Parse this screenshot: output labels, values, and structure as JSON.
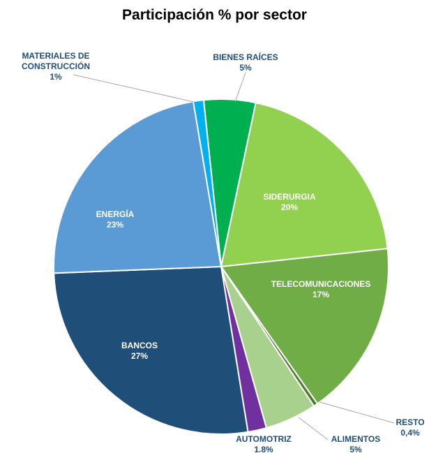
{
  "chart_data": {
    "type": "pie",
    "title": "Participación % por sector",
    "categories": [
      "BIENES RAÍCES",
      "SIDERURGIA",
      "TELECOMUNICACIONES",
      "RESTO",
      "ALIMENTOS",
      "AUTOMOTRIZ",
      "BANCOS",
      "ENERGÍA",
      "MATERIALES DE CONSTRUCCIÓN"
    ],
    "values": [
      5,
      20,
      17,
      0.4,
      5,
      1.8,
      27,
      23,
      1
    ],
    "value_labels": [
      "5%",
      "20%",
      "17%",
      "0,4%",
      "5%",
      "1.8%",
      "27%",
      "23%",
      "1%"
    ],
    "colors": [
      "#00b050",
      "#92d050",
      "#70ad47",
      "#4e7a2e",
      "#a9d18e",
      "#7030a0",
      "#1f4e79",
      "#5b9bd5",
      "#00b0f0"
    ]
  }
}
